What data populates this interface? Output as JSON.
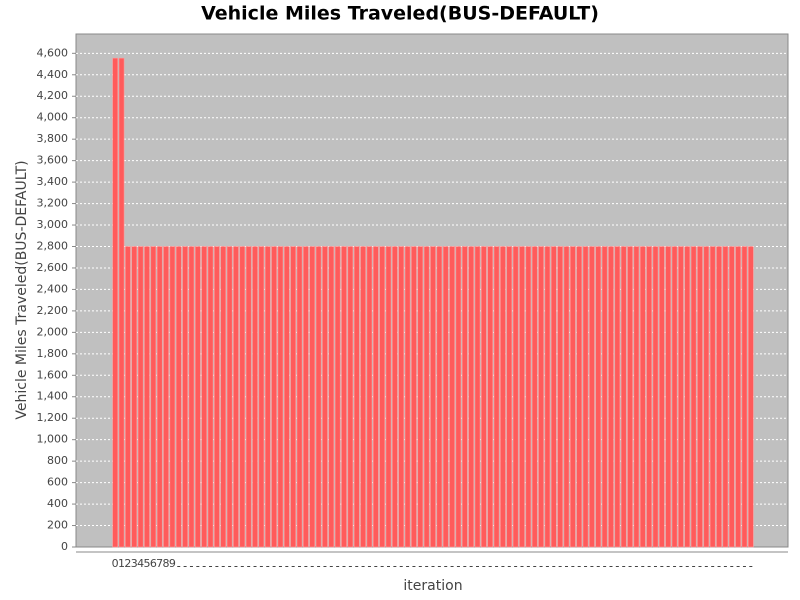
{
  "chart_data": {
    "type": "bar",
    "title": "Vehicle Miles Traveled(BUS-DEFAULT)",
    "y_label": "Vehicle Miles Traveled(BUS-DEFAULT)",
    "x_label": "iteration",
    "categories": [
      "0",
      "1",
      "2",
      "3",
      "4",
      "5",
      "6",
      "7",
      "8",
      "9",
      null,
      null,
      null,
      null,
      null,
      null,
      null,
      null,
      null,
      null,
      null,
      null,
      null,
      null,
      null,
      null,
      null,
      null,
      null,
      null,
      null,
      null,
      null,
      null,
      null,
      null,
      null,
      null,
      null,
      null,
      null,
      null,
      null,
      null,
      null,
      null,
      null,
      null,
      null,
      null,
      null,
      null,
      null,
      null,
      null,
      null,
      null,
      null,
      null,
      null,
      null,
      null,
      null,
      null,
      null,
      null,
      null,
      null,
      null,
      null,
      null,
      null,
      null,
      null,
      null,
      null,
      null,
      null,
      null,
      null,
      null,
      null,
      null,
      null,
      null,
      null,
      null,
      null,
      null,
      null,
      null,
      null,
      null,
      null,
      null,
      null,
      null,
      null,
      null,
      null,
      null
    ],
    "values": [
      4555,
      4555,
      2800,
      2800,
      2800,
      2800,
      2800,
      2800,
      2800,
      2800,
      2800,
      2800,
      2800,
      2800,
      2800,
      2800,
      2800,
      2800,
      2800,
      2800,
      2800,
      2800,
      2800,
      2800,
      2800,
      2800,
      2800,
      2800,
      2800,
      2800,
      2800,
      2800,
      2800,
      2800,
      2800,
      2800,
      2800,
      2800,
      2800,
      2800,
      2800,
      2800,
      2800,
      2800,
      2800,
      2800,
      2800,
      2800,
      2800,
      2800,
      2800,
      2800,
      2800,
      2800,
      2800,
      2800,
      2800,
      2800,
      2800,
      2800,
      2800,
      2800,
      2800,
      2800,
      2800,
      2800,
      2800,
      2800,
      2800,
      2800,
      2800,
      2800,
      2800,
      2800,
      2800,
      2800,
      2800,
      2800,
      2800,
      2800,
      2800,
      2800,
      2800,
      2800,
      2800,
      2800,
      2800,
      2800,
      2800,
      2800,
      2800,
      2800,
      2800,
      2800,
      2800,
      2800,
      2800,
      2800,
      2800,
      2800,
      2800
    ],
    "color": "#ff5b5b",
    "ylim": [
      0,
      4780
    ],
    "yticks": [
      0,
      200,
      400,
      600,
      800,
      {
        "value": 1000,
        "label": "1,000"
      },
      {
        "value": 1200,
        "label": "1,200"
      },
      {
        "value": 1400,
        "label": "1,400"
      },
      {
        "value": 1600,
        "label": "1,600"
      },
      {
        "value": 1800,
        "label": "1,800"
      },
      {
        "value": 2000,
        "label": "2,000"
      },
      {
        "value": 2200,
        "label": "2,200"
      },
      {
        "value": 2400,
        "label": "2,400"
      },
      {
        "value": 2600,
        "label": "2,600"
      },
      {
        "value": 2800,
        "label": "2,800"
      },
      {
        "value": 3000,
        "label": "3,000"
      },
      {
        "value": 3200,
        "label": "3,200"
      },
      {
        "value": 3400,
        "label": "3,400"
      },
      {
        "value": 3600,
        "label": "3,600"
      },
      {
        "value": 3800,
        "label": "3,800"
      },
      {
        "value": 4000,
        "label": "4,000"
      },
      {
        "value": 4200,
        "label": "4,200"
      },
      {
        "value": 4400,
        "label": "4,400"
      },
      {
        "value": 4600,
        "label": "4,600"
      }
    ],
    "grid": true
  }
}
